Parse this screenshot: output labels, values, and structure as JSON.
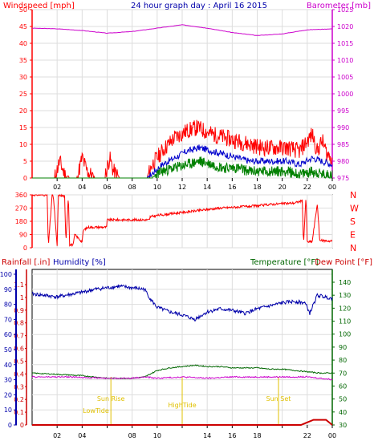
{
  "colors": {
    "wind": "#ff0000",
    "gust_avg": "#0000cc",
    "gust_low": "#008000",
    "baro": "#cc00cc",
    "rain": "#cc0000",
    "humidity": "#0000aa",
    "temp": "#006600",
    "dew": "#cc00cc",
    "tide": "#e0c000",
    "axis_dark": "#000000",
    "grid": "#dddddd"
  },
  "chart_data": [
    {
      "id": "wind-baro",
      "type": "line",
      "title": "24 hour graph day : April 16 2015",
      "left_label": "Windspeed [mph]",
      "right_label": "Barometer [mb]",
      "y_left_ticks": [
        "0",
        "5",
        "10",
        "15",
        "20",
        "25",
        "30",
        "35",
        "40",
        "45",
        "50"
      ],
      "y_right_ticks": [
        "975",
        "980",
        "985",
        "990",
        "995",
        "1000",
        "1005",
        "1010",
        "1015",
        "1020",
        "1025"
      ],
      "x_ticks": [
        "02",
        "04",
        "06",
        "08",
        "10",
        "12",
        "14",
        "16",
        "18",
        "20",
        "22",
        "00"
      ],
      "ylim_left": [
        0,
        50
      ],
      "ylim_right": [
        975,
        1025
      ],
      "series": [
        {
          "key": "baro",
          "values_x": [
            0,
            2,
            4,
            6,
            8,
            10,
            12,
            14,
            16,
            18,
            20,
            22,
            24
          ],
          "values": [
            1019.5,
            1019.3,
            1018.8,
            1018,
            1018.5,
            1019.5,
            1020.5,
            1019.5,
            1018.2,
            1017.3,
            1017.8,
            1019,
            1019.3
          ]
        },
        {
          "key": "wind",
          "values_x": [
            0,
            1.8,
            2.2,
            2.6,
            3,
            3.6,
            4,
            4.4,
            5,
            5.8,
            6.2,
            6.5,
            7,
            9.2,
            9.6,
            10.4,
            11.4,
            12.4,
            13.2,
            13.8,
            14.4,
            15.4,
            16.4,
            17.4,
            18.4,
            19.4,
            20.4,
            21.4,
            22.4,
            22.8,
            23.2,
            23.6,
            24
          ],
          "values": [
            0,
            0,
            5,
            1,
            0,
            0,
            6,
            2,
            0,
            0,
            6,
            2,
            0,
            0,
            4,
            8,
            12,
            14,
            15,
            14,
            13,
            12,
            11,
            10,
            9,
            9,
            9,
            8,
            13,
            8,
            11,
            7,
            6
          ]
        },
        {
          "key": "gust_avg",
          "values_x": [
            0,
            9.2,
            10.4,
            11.4,
            12.4,
            13.4,
            14.4,
            15.4,
            16.4,
            17.4,
            18.4,
            19.4,
            20.4,
            21.4,
            22.4,
            23.2,
            24
          ],
          "values": [
            0,
            0,
            4,
            6,
            8,
            9,
            8,
            7,
            6,
            5,
            5,
            5,
            5,
            4,
            6,
            5,
            4
          ]
        },
        {
          "key": "gust_low",
          "values_x": [
            0,
            9.6,
            10.4,
            11.4,
            12.4,
            13.4,
            14.4,
            15.4,
            16.4,
            17.4,
            18.4,
            19.4,
            20.4,
            21.4,
            22.4,
            23.2,
            24
          ],
          "values": [
            0,
            0,
            2,
            3,
            4,
            5,
            4,
            3,
            3,
            2,
            2,
            2,
            2,
            1,
            2,
            1,
            1
          ]
        }
      ]
    },
    {
      "id": "wind-dir",
      "type": "line",
      "y_left_ticks": [
        "360",
        "270",
        "180",
        "90",
        "0"
      ],
      "right_labels": [
        "N",
        "W",
        "S",
        "E",
        "N"
      ],
      "ylim": [
        0,
        360
      ],
      "series": [
        {
          "key": "dir",
          "values_x": [
            0,
            1.2,
            1.3,
            1.6,
            1.7,
            2,
            2.1,
            2.6,
            2.7,
            2.9,
            3,
            3.3,
            3.4,
            4,
            4.1,
            4.5,
            5.5,
            6,
            6,
            9.4,
            9.4,
            10,
            11,
            12,
            13,
            14,
            15,
            16,
            17,
            18,
            19,
            20,
            21,
            21.6,
            21.7,
            21.9,
            22,
            22.3,
            22.4,
            22.8,
            23,
            24
          ],
          "values": [
            360,
            360,
            10,
            360,
            350,
            10,
            360,
            350,
            30,
            360,
            20,
            20,
            90,
            40,
            120,
            140,
            140,
            140,
            190,
            190,
            210,
            220,
            230,
            240,
            250,
            260,
            270,
            275,
            280,
            285,
            295,
            300,
            305,
            320,
            30,
            350,
            40,
            40,
            45,
            300,
            50,
            45
          ]
        }
      ]
    },
    {
      "id": "rain-hum-temp",
      "type": "line",
      "left1_label": "Rainfall [.in]",
      "left2_label": "Humidity [%]",
      "right1_label": "Temperature [°F]",
      "right2_label": "Dew Point [°F]",
      "y_left1_ticks": [
        "0",
        "0.1",
        "0.2",
        "0.3",
        "0.4",
        "0.5",
        "0.6",
        "0.7",
        "0.8",
        "0.9",
        "1",
        "1.1"
      ],
      "y_left2_ticks": [
        "0",
        "10",
        "20",
        "30",
        "40",
        "50",
        "60",
        "70",
        "80",
        "90",
        "100"
      ],
      "y_right_ticks": [
        "30",
        "40",
        "50",
        "60",
        "70",
        "80",
        "90",
        "100",
        "110",
        "120",
        "130",
        "140"
      ],
      "x_ticks": [
        "02",
        "04",
        "06",
        "08",
        "10",
        "12",
        "14",
        "16",
        "18",
        "20",
        "22",
        "00"
      ],
      "tide_labels": [
        {
          "text": "Sun Rise",
          "x": 6.3,
          "y": "upper"
        },
        {
          "text": "LowTide",
          "x": 5.1,
          "y": "lower"
        },
        {
          "text": "HighTide",
          "x": 12.0,
          "y": "mid"
        },
        {
          "text": "Sun Set",
          "x": 19.7,
          "y": "upper"
        }
      ],
      "tide_markers": [
        6.3,
        12.0,
        19.7
      ],
      "series": [
        {
          "key": "humidity",
          "values_x": [
            0,
            2,
            4,
            5,
            7,
            8,
            9,
            9.5,
            10,
            11,
            12,
            13,
            14,
            15,
            16,
            17,
            18,
            19,
            20,
            21,
            21.8,
            22,
            22.2,
            22.8,
            24
          ],
          "values": [
            87,
            85,
            88,
            90,
            92,
            91,
            90,
            83,
            78,
            75,
            73,
            70,
            75,
            77,
            76,
            74,
            77,
            79,
            81,
            82,
            81,
            78,
            74,
            86,
            84
          ]
        },
        {
          "key": "temp",
          "values_x": [
            0,
            2,
            4,
            6,
            8,
            9,
            10,
            11,
            12,
            13,
            14,
            15,
            16,
            17,
            18,
            19,
            20,
            21,
            22,
            23,
            24
          ],
          "values": [
            70,
            69,
            68,
            66,
            66,
            67,
            72,
            74,
            75,
            76,
            75,
            75,
            74,
            74,
            74,
            73,
            73,
            72,
            71,
            70,
            70
          ]
        },
        {
          "key": "dew",
          "values_x": [
            0,
            3,
            6,
            8,
            9,
            10,
            12,
            14,
            16,
            18,
            20,
            21,
            22,
            23,
            24
          ],
          "values": [
            67,
            67,
            66,
            66,
            67,
            66,
            67,
            66,
            67,
            67,
            67,
            67,
            67,
            66,
            65
          ]
        },
        {
          "key": "rain",
          "values_x": [
            0,
            21.5,
            22,
            22.5,
            23.5,
            24
          ],
          "values": [
            0,
            0,
            0.02,
            0.04,
            0.04,
            0
          ]
        }
      ]
    }
  ],
  "footer_ticks": [
    "02",
    "04",
    "Low",
    "Tide",
    "08",
    "10",
    "High",
    "Tide",
    "14",
    "16",
    "18",
    "Sun",
    "Set",
    "22",
    "00"
  ]
}
